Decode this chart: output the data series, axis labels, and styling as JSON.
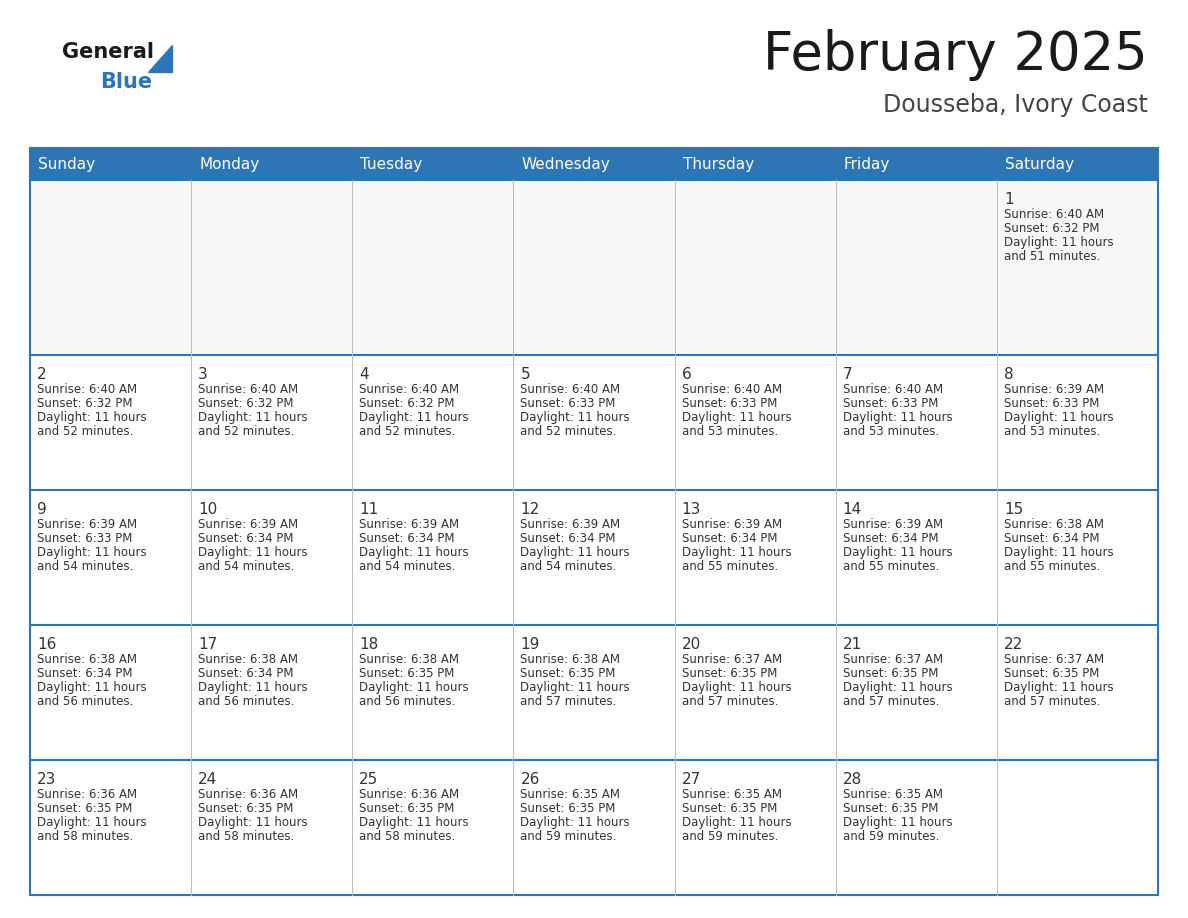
{
  "title": "February 2025",
  "subtitle": "Dousseba, Ivory Coast",
  "header_bg": "#2E75B6",
  "header_text_color": "#FFFFFF",
  "cell_bg_alt": "#F2F2F2",
  "cell_bg_white": "#FFFFFF",
  "cell_border_blue": "#2E75B6",
  "cell_border_light": "#AAAAAA",
  "day_number_color": "#333333",
  "info_text_color": "#333333",
  "days_of_week": [
    "Sunday",
    "Monday",
    "Tuesday",
    "Wednesday",
    "Thursday",
    "Friday",
    "Saturday"
  ],
  "calendar": [
    [
      null,
      null,
      null,
      null,
      null,
      null,
      {
        "day": 1,
        "sunrise": "6:40 AM",
        "sunset": "6:32 PM",
        "daylight": "11 hours and 51 minutes."
      }
    ],
    [
      {
        "day": 2,
        "sunrise": "6:40 AM",
        "sunset": "6:32 PM",
        "daylight": "11 hours and 52 minutes."
      },
      {
        "day": 3,
        "sunrise": "6:40 AM",
        "sunset": "6:32 PM",
        "daylight": "11 hours and 52 minutes."
      },
      {
        "day": 4,
        "sunrise": "6:40 AM",
        "sunset": "6:32 PM",
        "daylight": "11 hours and 52 minutes."
      },
      {
        "day": 5,
        "sunrise": "6:40 AM",
        "sunset": "6:33 PM",
        "daylight": "11 hours and 52 minutes."
      },
      {
        "day": 6,
        "sunrise": "6:40 AM",
        "sunset": "6:33 PM",
        "daylight": "11 hours and 53 minutes."
      },
      {
        "day": 7,
        "sunrise": "6:40 AM",
        "sunset": "6:33 PM",
        "daylight": "11 hours and 53 minutes."
      },
      {
        "day": 8,
        "sunrise": "6:39 AM",
        "sunset": "6:33 PM",
        "daylight": "11 hours and 53 minutes."
      }
    ],
    [
      {
        "day": 9,
        "sunrise": "6:39 AM",
        "sunset": "6:33 PM",
        "daylight": "11 hours and 54 minutes."
      },
      {
        "day": 10,
        "sunrise": "6:39 AM",
        "sunset": "6:34 PM",
        "daylight": "11 hours and 54 minutes."
      },
      {
        "day": 11,
        "sunrise": "6:39 AM",
        "sunset": "6:34 PM",
        "daylight": "11 hours and 54 minutes."
      },
      {
        "day": 12,
        "sunrise": "6:39 AM",
        "sunset": "6:34 PM",
        "daylight": "11 hours and 54 minutes."
      },
      {
        "day": 13,
        "sunrise": "6:39 AM",
        "sunset": "6:34 PM",
        "daylight": "11 hours and 55 minutes."
      },
      {
        "day": 14,
        "sunrise": "6:39 AM",
        "sunset": "6:34 PM",
        "daylight": "11 hours and 55 minutes."
      },
      {
        "day": 15,
        "sunrise": "6:38 AM",
        "sunset": "6:34 PM",
        "daylight": "11 hours and 55 minutes."
      }
    ],
    [
      {
        "day": 16,
        "sunrise": "6:38 AM",
        "sunset": "6:34 PM",
        "daylight": "11 hours and 56 minutes."
      },
      {
        "day": 17,
        "sunrise": "6:38 AM",
        "sunset": "6:34 PM",
        "daylight": "11 hours and 56 minutes."
      },
      {
        "day": 18,
        "sunrise": "6:38 AM",
        "sunset": "6:35 PM",
        "daylight": "11 hours and 56 minutes."
      },
      {
        "day": 19,
        "sunrise": "6:38 AM",
        "sunset": "6:35 PM",
        "daylight": "11 hours and 57 minutes."
      },
      {
        "day": 20,
        "sunrise": "6:37 AM",
        "sunset": "6:35 PM",
        "daylight": "11 hours and 57 minutes."
      },
      {
        "day": 21,
        "sunrise": "6:37 AM",
        "sunset": "6:35 PM",
        "daylight": "11 hours and 57 minutes."
      },
      {
        "day": 22,
        "sunrise": "6:37 AM",
        "sunset": "6:35 PM",
        "daylight": "11 hours and 57 minutes."
      }
    ],
    [
      {
        "day": 23,
        "sunrise": "6:36 AM",
        "sunset": "6:35 PM",
        "daylight": "11 hours and 58 minutes."
      },
      {
        "day": 24,
        "sunrise": "6:36 AM",
        "sunset": "6:35 PM",
        "daylight": "11 hours and 58 minutes."
      },
      {
        "day": 25,
        "sunrise": "6:36 AM",
        "sunset": "6:35 PM",
        "daylight": "11 hours and 58 minutes."
      },
      {
        "day": 26,
        "sunrise": "6:35 AM",
        "sunset": "6:35 PM",
        "daylight": "11 hours and 59 minutes."
      },
      {
        "day": 27,
        "sunrise": "6:35 AM",
        "sunset": "6:35 PM",
        "daylight": "11 hours and 59 minutes."
      },
      {
        "day": 28,
        "sunrise": "6:35 AM",
        "sunset": "6:35 PM",
        "daylight": "11 hours and 59 minutes."
      },
      null
    ]
  ]
}
